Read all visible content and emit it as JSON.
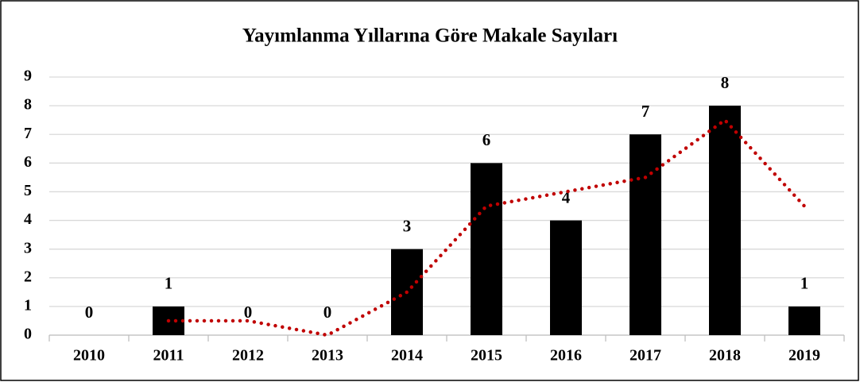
{
  "chart_data": {
    "type": "bar",
    "title": "Yayımlanma Yıllarına Göre Makale Sayıları",
    "categories": [
      "2010",
      "2011",
      "2012",
      "2013",
      "2014",
      "2015",
      "2016",
      "2017",
      "2018",
      "2019"
    ],
    "values": [
      0,
      1,
      0,
      0,
      3,
      6,
      4,
      7,
      8,
      1
    ],
    "color": "#000000",
    "ylim": [
      0,
      9
    ],
    "yticks": [
      0,
      1,
      2,
      3,
      4,
      5,
      6,
      7,
      8,
      9
    ],
    "grid": true,
    "data_labels": true,
    "trendline": {
      "type": "moving_average",
      "period": 2,
      "color": "#c00000"
    }
  }
}
